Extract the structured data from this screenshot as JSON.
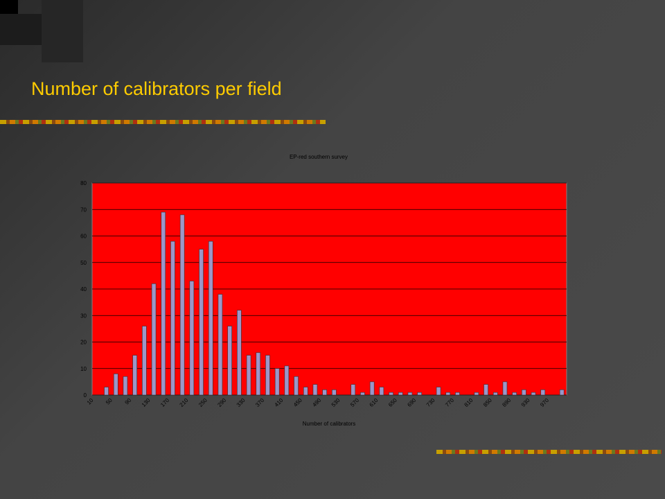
{
  "slide": {
    "title": "Number of calibrators per field"
  },
  "chart_data": {
    "type": "bar",
    "title": "EP-red southern survey",
    "x_label": "Number of calibrators",
    "categories": [
      "10",
      null,
      "50",
      null,
      "90",
      null,
      "130",
      null,
      "170",
      null,
      "210",
      null,
      "250",
      null,
      "290",
      null,
      "330",
      null,
      "370",
      null,
      "410",
      null,
      "450",
      null,
      "490",
      null,
      "530",
      null,
      "570",
      null,
      "610",
      null,
      "650",
      null,
      "690",
      null,
      "730",
      null,
      "770",
      null,
      "810",
      null,
      "850",
      null,
      "890",
      null,
      "930",
      null,
      "970",
      null
    ],
    "values": [
      0,
      3,
      8,
      7,
      15,
      26,
      42,
      69,
      58,
      68,
      43,
      55,
      58,
      38,
      26,
      32,
      15,
      16,
      15,
      10,
      11,
      7,
      3,
      4,
      2,
      2,
      0,
      4,
      1,
      5,
      3,
      1,
      1,
      1,
      1,
      0,
      3,
      1,
      1,
      0,
      1,
      4,
      1,
      5,
      1,
      2,
      1,
      2,
      0,
      2
    ],
    "color": "#9c96c8",
    "plot_background": "#ff0000",
    "ylim": [
      0,
      80
    ],
    "yticks": [
      0,
      10,
      20,
      30,
      40,
      50,
      60,
      70,
      80
    ],
    "grid": true
  }
}
